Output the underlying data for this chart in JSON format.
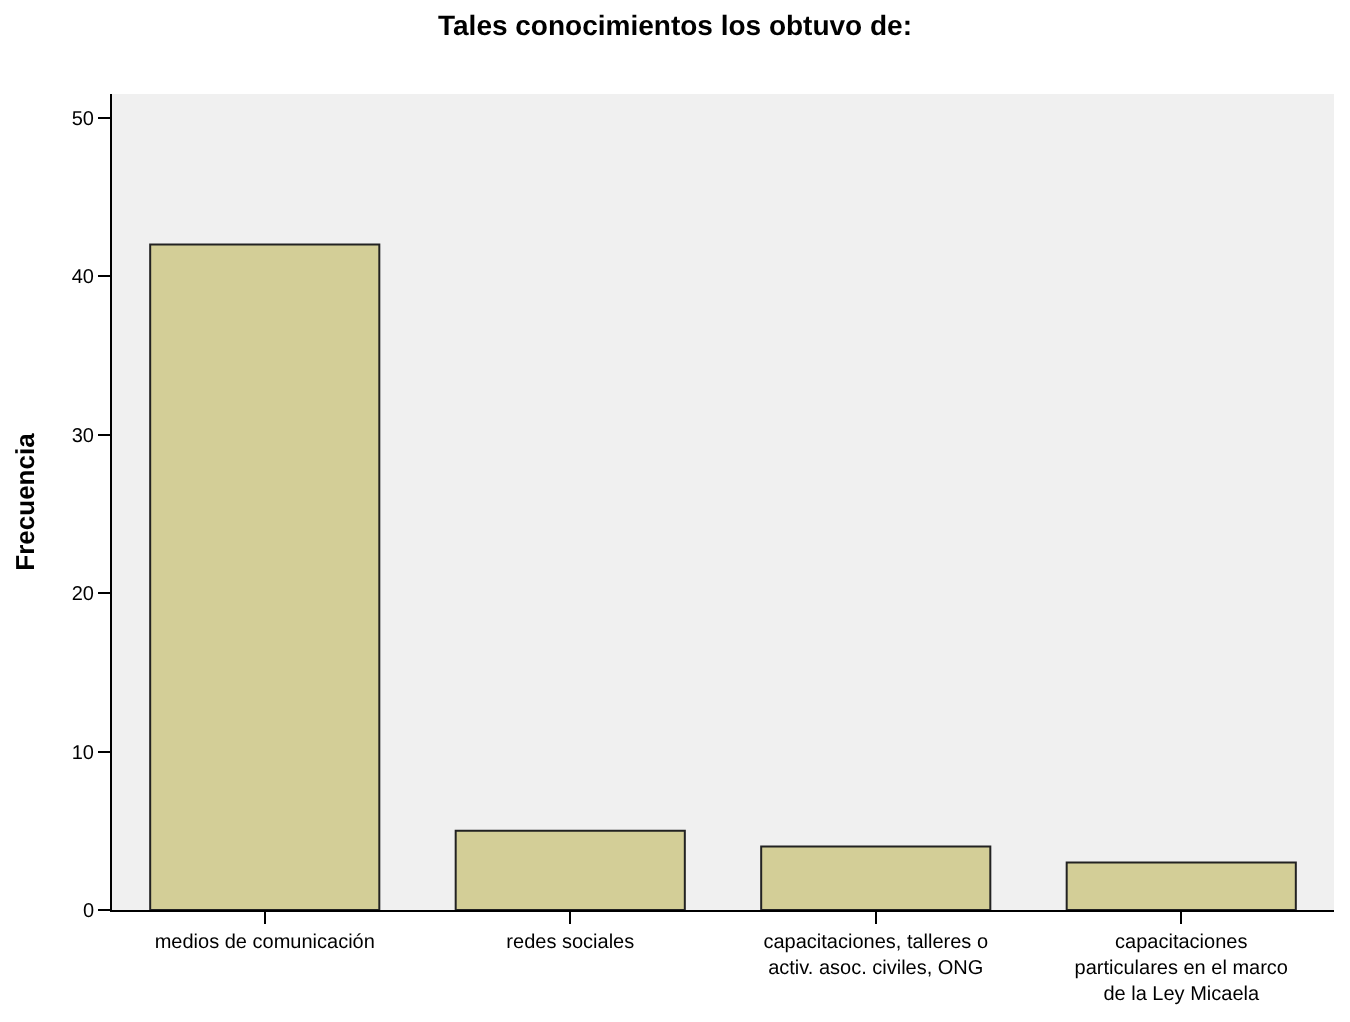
{
  "chart_data": {
    "type": "bar",
    "title": "Tales conocimientos los obtuvo de:",
    "ylabel": "Frecuencia",
    "categories": [
      "medios de comunicación",
      "redes sociales",
      "capacitaciones, talleres o\nactiv. asoc. civiles, ONG",
      "capacitaciones\nparticulares en el marco\nde la Ley Micaela"
    ],
    "values": [
      42,
      5,
      4,
      3
    ],
    "color": "#d3ce97",
    "ylim": [
      0,
      51.5
    ],
    "yticks": [
      0,
      10,
      20,
      30,
      40,
      50
    ],
    "grid": false
  }
}
